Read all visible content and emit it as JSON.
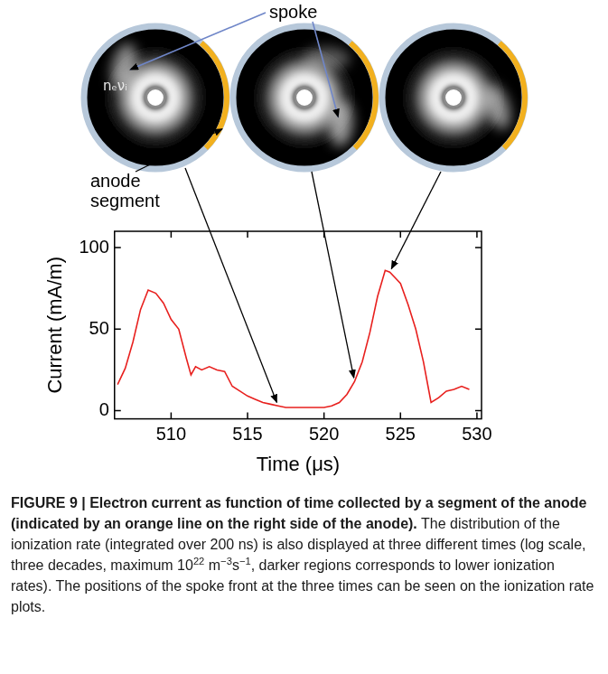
{
  "chart_data": {
    "type": "line",
    "x_label": "Time (μs)",
    "y_label": "Current (mA/m)",
    "x": [
      506.5,
      507,
      507.5,
      508,
      508.5,
      509,
      509.5,
      510,
      510.5,
      511,
      511.3,
      511.6,
      512,
      512.5,
      513,
      513.5,
      514,
      514.5,
      515,
      515.5,
      516,
      516.5,
      517,
      517.5,
      518,
      519,
      520,
      520.5,
      521,
      521.5,
      522,
      522.5,
      523,
      523.5,
      524,
      524.3,
      524.6,
      525,
      525.5,
      526,
      526.5,
      526.8,
      527,
      527.5,
      528,
      528.5,
      529,
      529.5
    ],
    "values": [
      16,
      26,
      42,
      62,
      74,
      72,
      66,
      56,
      50,
      32,
      22,
      27,
      25,
      27,
      25,
      24,
      15,
      12,
      9,
      7,
      5,
      4,
      3,
      2,
      2,
      2,
      2,
      3,
      5,
      10,
      18,
      30,
      48,
      70,
      86,
      85,
      82,
      78,
      65,
      50,
      30,
      15,
      5,
      8,
      12,
      13,
      15,
      13
    ],
    "color": "#e8201e",
    "xlim": [
      506.3,
      530.3
    ],
    "xticks": [
      510,
      515,
      520,
      525,
      530
    ],
    "ylim": [
      -5,
      110
    ],
    "yticks": [
      0,
      50,
      100
    ],
    "grid": false
  },
  "annotations": {
    "spoke": "spoke",
    "anode": "anode segment",
    "rate": "nₑνᵢ"
  },
  "images": [
    {
      "time": 517
    },
    {
      "time": 522
    },
    {
      "time": 524.3
    }
  ],
  "caption": {
    "title": "FIGURE 9 | Electron current as function of time collected by a segment of the anode (indicated by an orange line on the right side of the anode).",
    "text": [
      {
        "text": " The distribution of the ionization rate (integrated over 200 ns) is also displayed at three different times (log scale, three decades, maximum 10"
      },
      {
        "sup": "22"
      },
      {
        "text": " m"
      },
      {
        "sup": "−3"
      },
      {
        "text": "s"
      },
      {
        "sup": "−1"
      },
      {
        "text": ", darker regions corresponds to lower ionization rates). The positions of the spoke front at the three times can be seen on the ionization rate plots."
      }
    ]
  }
}
